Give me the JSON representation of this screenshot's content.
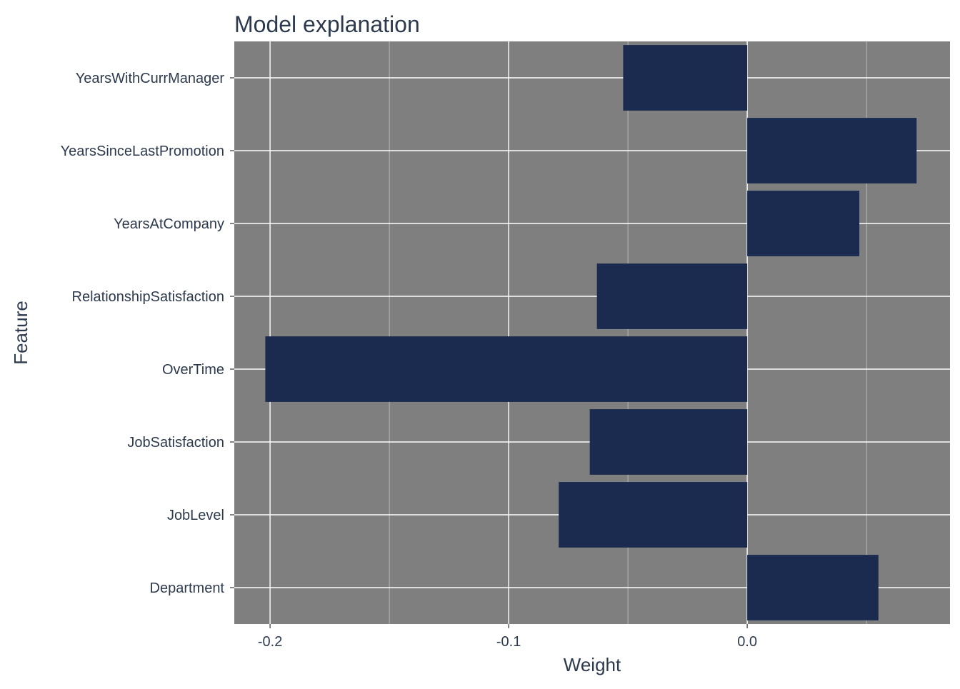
{
  "colors": {
    "panel_background": "#7f7f7f",
    "bar_fill": "#1b2b4f",
    "grid": "#ffffff",
    "text": "#2d3a4d"
  },
  "chart_data": {
    "type": "bar",
    "orientation": "horizontal",
    "title": "Model explanation",
    "xlabel": "Weight",
    "ylabel": "Feature",
    "categories": [
      "YearsWithCurrManager",
      "YearsSinceLastPromotion",
      "YearsAtCompany",
      "RelationshipSatisfaction",
      "OverTime",
      "JobSatisfaction",
      "JobLevel",
      "Department"
    ],
    "values": [
      -0.052,
      0.071,
      0.047,
      -0.063,
      -0.202,
      -0.066,
      -0.079,
      0.055
    ],
    "xlim": [
      -0.215,
      0.085
    ],
    "xticks": [
      -0.2,
      -0.1,
      0.0
    ],
    "xtick_labels": [
      "-0.2",
      "-0.1",
      "0.0"
    ],
    "grid": true,
    "legend": "none"
  }
}
